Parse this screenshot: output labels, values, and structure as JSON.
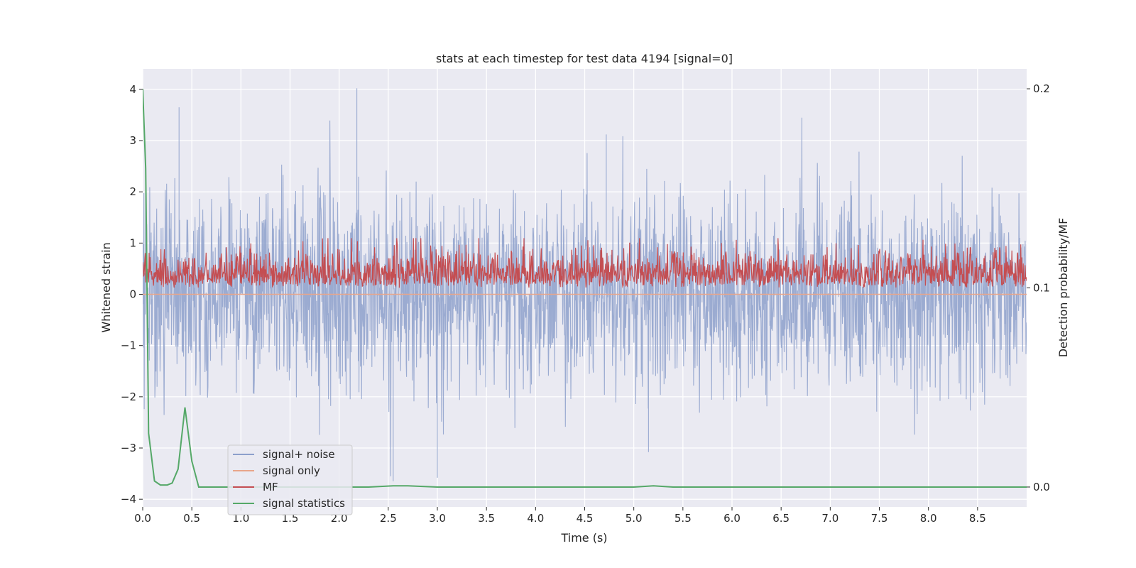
{
  "chart_data": {
    "type": "line",
    "title": "stats at each timestep for test data 4194 [signal=0]",
    "xlabel": "Time (s)",
    "ylabel": "Whitened strain",
    "y2label": "Detection probability/MF",
    "xlim": [
      0.0,
      9.0
    ],
    "ylim": [
      -4.15,
      4.4
    ],
    "y2lim": [
      -0.01,
      0.21
    ],
    "x_ticks": [
      0.0,
      0.5,
      1.0,
      1.5,
      2.0,
      2.5,
      3.0,
      3.5,
      4.0,
      4.5,
      5.0,
      5.5,
      6.0,
      6.5,
      7.0,
      7.5,
      8.0,
      8.5
    ],
    "x_tick_labels": [
      "0.0",
      "0.5",
      "1.0",
      "1.5",
      "2.0",
      "2.5",
      "3.0",
      "3.5",
      "4.0",
      "4.5",
      "5.0",
      "5.5",
      "6.0",
      "6.5",
      "7.0",
      "7.5",
      "8.0",
      "8.5"
    ],
    "y_ticks": [
      -4,
      -3,
      -2,
      -1,
      0,
      1,
      2,
      3,
      4
    ],
    "y_tick_labels": [
      "−4",
      "−3",
      "−2",
      "−1",
      "0",
      "1",
      "2",
      "3",
      "4"
    ],
    "y2_ticks": [
      0.0,
      0.1,
      0.2
    ],
    "y2_tick_labels": [
      "0.0",
      "0.1",
      "0.2"
    ],
    "grid": true,
    "legend_position": "lower-left",
    "series": [
      {
        "name": "signal+ noise",
        "axis": "left",
        "color": "#8da0cb",
        "description": "whitened noise, approx. ±1 sigma, range about −3.7 to 4.0",
        "amplitude_range": [
          -3.7,
          4.0
        ],
        "notable_peaks": [
          [
            0.37,
            3.65
          ],
          [
            2.18,
            4.02
          ],
          [
            4.72,
            3.12
          ],
          [
            2.55,
            -3.65
          ],
          [
            3.0,
            -3.58
          ],
          [
            5.15,
            -3.08
          ]
        ]
      },
      {
        "name": "signal only",
        "axis": "left",
        "color": "#e8a58a",
        "description": "zero (no signal injected)",
        "x": [
          0.0,
          9.0
        ],
        "y": [
          0.0,
          0.0
        ]
      },
      {
        "name": "MF",
        "axis": "right",
        "color": "#c44e52",
        "description": "matched-filter output, fluctuating between about 0.100 and 0.125",
        "value_range": [
          0.1,
          0.125
        ]
      },
      {
        "name": "signal statistics",
        "axis": "right",
        "color": "#55a868",
        "x": [
          0.0,
          0.03,
          0.06,
          0.12,
          0.18,
          0.25,
          0.3,
          0.36,
          0.43,
          0.5,
          0.57,
          0.7,
          1.0,
          1.5,
          2.0,
          2.3,
          2.55,
          2.7,
          3.0,
          3.5,
          4.0,
          4.5,
          5.0,
          5.2,
          5.4,
          6.0,
          7.0,
          8.0,
          8.5,
          9.0
        ],
        "y": [
          0.2,
          0.16,
          0.027,
          0.003,
          0.001,
          0.001,
          0.002,
          0.009,
          0.04,
          0.013,
          0.0,
          0.0,
          0.0,
          0.0,
          0.0,
          0.0,
          0.0006,
          0.0006,
          0.0,
          0.0,
          0.0,
          0.0,
          0.0,
          0.0006,
          0.0,
          0.0,
          0.0,
          0.0,
          0.0,
          0.0
        ]
      }
    ]
  }
}
